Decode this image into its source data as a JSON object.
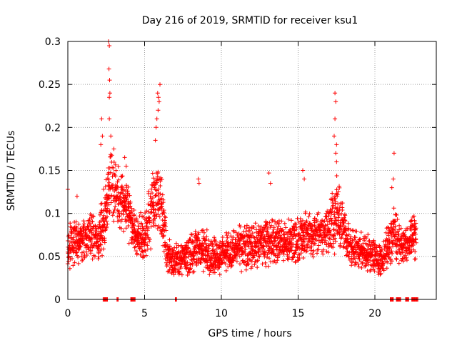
{
  "chart_data": {
    "type": "scatter",
    "title": "Day 216 of 2019, SRMTID for receiver ksu1",
    "xlabel": "GPS time / hours",
    "ylabel": "SRMTID / TECUs",
    "xlim": [
      0,
      24
    ],
    "ylim": [
      0,
      0.3
    ],
    "xticks": [
      "0",
      "5",
      "10",
      "15",
      "20"
    ],
    "xtick_values": [
      0,
      5,
      10,
      15,
      20
    ],
    "yticks": [
      "0",
      "0.05",
      "0.1",
      "0.15",
      "0.2",
      "0.25",
      "0.3"
    ],
    "ytick_values": [
      0,
      0.05,
      0.1,
      0.15,
      0.2,
      0.25,
      0.3
    ],
    "grid": true,
    "marker": "plus",
    "marker_color": "#ff0000",
    "series": [
      {
        "name": "SRMTID",
        "profile": [
          {
            "t": 0.0,
            "base": 0.06,
            "spread": 0.03
          },
          {
            "t": 0.5,
            "base": 0.07,
            "spread": 0.03
          },
          {
            "t": 1.0,
            "base": 0.07,
            "spread": 0.03
          },
          {
            "t": 1.5,
            "base": 0.075,
            "spread": 0.03
          },
          {
            "t": 2.0,
            "base": 0.07,
            "spread": 0.03
          },
          {
            "t": 2.3,
            "base": 0.09,
            "spread": 0.04
          },
          {
            "t": 2.8,
            "base": 0.13,
            "spread": 0.05
          },
          {
            "t": 3.2,
            "base": 0.12,
            "spread": 0.04
          },
          {
            "t": 3.8,
            "base": 0.11,
            "spread": 0.04
          },
          {
            "t": 4.3,
            "base": 0.08,
            "spread": 0.03
          },
          {
            "t": 5.0,
            "base": 0.07,
            "spread": 0.03
          },
          {
            "t": 5.5,
            "base": 0.11,
            "spread": 0.05
          },
          {
            "t": 6.0,
            "base": 0.12,
            "spread": 0.05
          },
          {
            "t": 6.5,
            "base": 0.05,
            "spread": 0.025
          },
          {
            "t": 7.5,
            "base": 0.045,
            "spread": 0.02
          },
          {
            "t": 8.5,
            "base": 0.06,
            "spread": 0.03
          },
          {
            "t": 9.5,
            "base": 0.05,
            "spread": 0.025
          },
          {
            "t": 10.5,
            "base": 0.055,
            "spread": 0.025
          },
          {
            "t": 11.5,
            "base": 0.06,
            "spread": 0.03
          },
          {
            "t": 12.5,
            "base": 0.065,
            "spread": 0.03
          },
          {
            "t": 13.5,
            "base": 0.07,
            "spread": 0.03
          },
          {
            "t": 14.5,
            "base": 0.065,
            "spread": 0.03
          },
          {
            "t": 15.5,
            "base": 0.075,
            "spread": 0.03
          },
          {
            "t": 16.5,
            "base": 0.075,
            "spread": 0.03
          },
          {
            "t": 17.5,
            "base": 0.1,
            "spread": 0.05
          },
          {
            "t": 18.5,
            "base": 0.06,
            "spread": 0.025
          },
          {
            "t": 19.5,
            "base": 0.055,
            "spread": 0.025
          },
          {
            "t": 20.5,
            "base": 0.045,
            "spread": 0.02
          },
          {
            "t": 21.2,
            "base": 0.08,
            "spread": 0.035
          },
          {
            "t": 21.8,
            "base": 0.06,
            "spread": 0.025
          },
          {
            "t": 22.5,
            "base": 0.075,
            "spread": 0.03
          }
        ],
        "peaks": [
          {
            "t": 2.65,
            "value": 0.3
          },
          {
            "t": 2.7,
            "value": 0.295
          },
          {
            "t": 2.68,
            "value": 0.268
          },
          {
            "t": 2.72,
            "value": 0.255
          },
          {
            "t": 2.74,
            "value": 0.24
          },
          {
            "t": 2.7,
            "value": 0.235
          },
          {
            "t": 2.2,
            "value": 0.21
          },
          {
            "t": 2.25,
            "value": 0.19
          },
          {
            "t": 2.15,
            "value": 0.18
          },
          {
            "t": 2.7,
            "value": 0.21
          },
          {
            "t": 2.8,
            "value": 0.19
          },
          {
            "t": 3.0,
            "value": 0.175
          },
          {
            "t": 5.85,
            "value": 0.24
          },
          {
            "t": 5.9,
            "value": 0.235
          },
          {
            "t": 5.95,
            "value": 0.23
          },
          {
            "t": 5.88,
            "value": 0.22
          },
          {
            "t": 6.0,
            "value": 0.25
          },
          {
            "t": 5.8,
            "value": 0.21
          },
          {
            "t": 5.75,
            "value": 0.2
          },
          {
            "t": 5.7,
            "value": 0.185
          },
          {
            "t": 17.4,
            "value": 0.24
          },
          {
            "t": 17.45,
            "value": 0.23
          },
          {
            "t": 17.4,
            "value": 0.21
          },
          {
            "t": 17.35,
            "value": 0.19
          },
          {
            "t": 17.5,
            "value": 0.18
          },
          {
            "t": 17.45,
            "value": 0.17
          },
          {
            "t": 17.5,
            "value": 0.16
          },
          {
            "t": 21.25,
            "value": 0.17
          },
          {
            "t": 21.2,
            "value": 0.14
          },
          {
            "t": 21.1,
            "value": 0.13
          },
          {
            "t": 3.7,
            "value": 0.165
          },
          {
            "t": 3.8,
            "value": 0.155
          },
          {
            "t": 8.5,
            "value": 0.14
          },
          {
            "t": 8.55,
            "value": 0.135
          },
          {
            "t": 13.1,
            "value": 0.147
          },
          {
            "t": 13.2,
            "value": 0.135
          },
          {
            "t": 15.3,
            "value": 0.15
          },
          {
            "t": 15.4,
            "value": 0.14
          },
          {
            "t": 0.0,
            "value": 0.128
          },
          {
            "t": 0.6,
            "value": 0.12
          }
        ],
        "zero_runs": [
          [
            2.3,
            2.6
          ],
          [
            3.2,
            3.3
          ],
          [
            4.1,
            4.4
          ],
          [
            7.0,
            7.1
          ],
          [
            21.0,
            21.2
          ],
          [
            21.4,
            21.7
          ],
          [
            22.0,
            22.2
          ],
          [
            22.4,
            22.8
          ]
        ]
      }
    ]
  }
}
